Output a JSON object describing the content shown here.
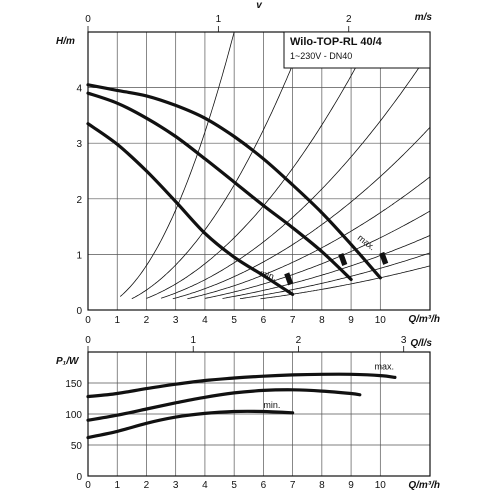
{
  "colors": {
    "background": "#ffffff",
    "ink": "#111111",
    "grid": "#555555"
  },
  "chart_data": [
    {
      "type": "line",
      "title": "Wilo-TOP-RL 40/4",
      "subtitle": "1~230V - DN40",
      "xlabel": "Q/m³/h",
      "ylabel": "H/m",
      "top_axis_label": "m/s",
      "top_axis_symbol": "v",
      "xlim": [
        0,
        11.7
      ],
      "ylim": [
        0,
        5
      ],
      "x_ticks": [
        0,
        1,
        2,
        3,
        4,
        5,
        6,
        7,
        8,
        9,
        10
      ],
      "y_ticks": [
        0,
        1,
        2,
        3,
        4
      ],
      "top_ticks": [
        0,
        1,
        2
      ],
      "top_axis_q_per_unit": 4.46,
      "grid": true,
      "series": [
        {
          "name": "max.",
          "points": [
            [
              0,
              4.05
            ],
            [
              1,
              3.95
            ],
            [
              2,
              3.85
            ],
            [
              3,
              3.68
            ],
            [
              4,
              3.45
            ],
            [
              5,
              3.12
            ],
            [
              6,
              2.72
            ],
            [
              7,
              2.25
            ],
            [
              8,
              1.75
            ],
            [
              9,
              1.18
            ],
            [
              10,
              0.58
            ]
          ]
        },
        {
          "name": "",
          "points": [
            [
              0,
              3.9
            ],
            [
              1,
              3.72
            ],
            [
              2,
              3.45
            ],
            [
              3,
              3.12
            ],
            [
              4,
              2.72
            ],
            [
              5,
              2.3
            ],
            [
              6,
              1.88
            ],
            [
              7,
              1.48
            ],
            [
              8,
              1.05
            ],
            [
              9,
              0.55
            ]
          ]
        },
        {
          "name": "min.",
          "points": [
            [
              0,
              3.35
            ],
            [
              1,
              2.98
            ],
            [
              2,
              2.5
            ],
            [
              3,
              1.95
            ],
            [
              4,
              1.38
            ],
            [
              5,
              0.95
            ],
            [
              6,
              0.62
            ],
            [
              7,
              0.28
            ]
          ]
        }
      ],
      "end_markers": [
        {
          "x": 6.85,
          "y": 0.55
        },
        {
          "x": 8.7,
          "y": 0.9
        },
        {
          "x": 10.1,
          "y": 0.92
        }
      ],
      "system_curves": [
        {
          "k": 0.2
        },
        {
          "k": 0.09
        },
        {
          "k": 0.052
        },
        {
          "k": 0.034
        },
        {
          "k": 0.024
        },
        {
          "k": 0.0175
        },
        {
          "k": 0.013
        },
        {
          "k": 0.0098
        },
        {
          "k": 0.0075
        },
        {
          "k": 0.0058
        }
      ]
    },
    {
      "type": "line",
      "title": "",
      "xlabel": "Q/m³/h",
      "ylabel": "P₁/W",
      "top_axis_label": "Q/l/s",
      "xlim": [
        0,
        11.7
      ],
      "ylim": [
        0,
        200
      ],
      "x_ticks": [
        0,
        1,
        2,
        3,
        4,
        5,
        6,
        7,
        8,
        9,
        10
      ],
      "y_ticks": [
        0,
        50,
        100,
        150
      ],
      "top_ticks": [
        0,
        1,
        2,
        3
      ],
      "top_axis_q_per_unit": 3.6,
      "grid": true,
      "series": [
        {
          "name": "max.",
          "points": [
            [
              0,
              128
            ],
            [
              1,
              133
            ],
            [
              2,
              141
            ],
            [
              3,
              148
            ],
            [
              4,
              154
            ],
            [
              5,
              158
            ],
            [
              6,
              161
            ],
            [
              7,
              163
            ],
            [
              8,
              164
            ],
            [
              9,
              164
            ],
            [
              10,
              162
            ],
            [
              10.5,
              159
            ]
          ]
        },
        {
          "name": "",
          "points": [
            [
              0,
              90
            ],
            [
              1,
              98
            ],
            [
              2,
              108
            ],
            [
              3,
              118
            ],
            [
              4,
              127
            ],
            [
              5,
              134
            ],
            [
              6,
              138
            ],
            [
              7,
              139
            ],
            [
              8,
              137
            ],
            [
              9,
              133
            ],
            [
              9.3,
              131
            ]
          ]
        },
        {
          "name": "min.",
          "points": [
            [
              0,
              62
            ],
            [
              1,
              72
            ],
            [
              2,
              85
            ],
            [
              3,
              95
            ],
            [
              4,
              101
            ],
            [
              5,
              104
            ],
            [
              6,
              104
            ],
            [
              7,
              102
            ]
          ]
        }
      ]
    }
  ]
}
